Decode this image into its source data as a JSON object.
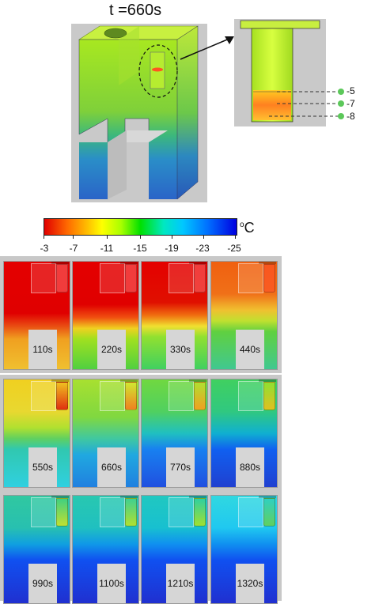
{
  "title": "t =660s",
  "probe_labels": [
    "-5",
    "-7",
    "-8"
  ],
  "colorbar": {
    "unit": "C",
    "ticks": [
      "-3",
      "-7",
      "-11",
      "-15",
      "-19",
      "-23",
      "-25"
    ]
  },
  "frames": [
    {
      "label": "110s"
    },
    {
      "label": "220s"
    },
    {
      "label": "330s"
    },
    {
      "label": "440s"
    },
    {
      "label": "550s"
    },
    {
      "label": "660s"
    },
    {
      "label": "770s"
    },
    {
      "label": "880s"
    },
    {
      "label": "990s"
    },
    {
      "label": "1100s"
    },
    {
      "label": "1210s"
    },
    {
      "label": "1320s"
    }
  ]
}
